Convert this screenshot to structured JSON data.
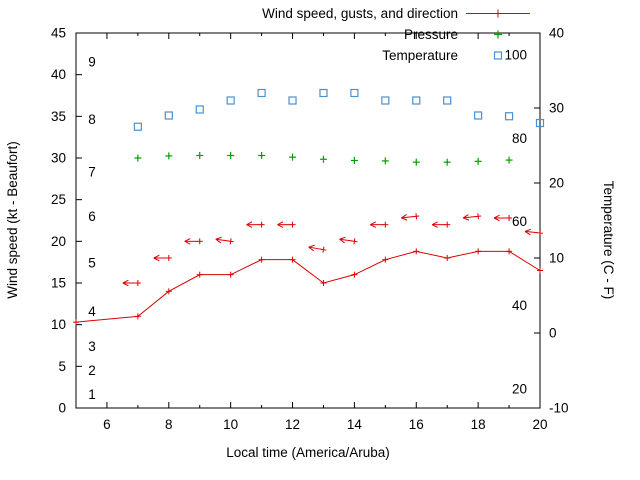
{
  "background": "#ffffff",
  "chart_data": {
    "type": "line",
    "title": "",
    "xlabel": "Local time (America/Aruba)",
    "ylabel_left": "Wind speed (kt - Beaufort)",
    "ylabel_right": "Temperature (C - F)",
    "x_range": [
      5,
      20
    ],
    "x_ticks": [
      6,
      8,
      10,
      12,
      14,
      16,
      18,
      20
    ],
    "x_minor_ticks": [
      5,
      7,
      9,
      11,
      13,
      15,
      17,
      19
    ],
    "y_left_range": [
      0,
      45
    ],
    "y_left_ticks": [
      0,
      5,
      10,
      15,
      20,
      25,
      30,
      35,
      40,
      45
    ],
    "y_right_range": [
      -10,
      40
    ],
    "y_right_ticks": [
      -10,
      0,
      10,
      20,
      30,
      40
    ],
    "grid": false,
    "legend_position": "top-right-inside",
    "beaufort_scale_labels": [
      {
        "label": "1",
        "kt": 1.6
      },
      {
        "label": "2",
        "kt": 4.5
      },
      {
        "label": "3",
        "kt": 7.4
      },
      {
        "label": "4",
        "kt": 11.6
      },
      {
        "label": "5",
        "kt": 17.4
      },
      {
        "label": "6",
        "kt": 23.0
      },
      {
        "label": "7",
        "kt": 28.3
      },
      {
        "label": "8",
        "kt": 34.6
      },
      {
        "label": "9",
        "kt": 41.5
      }
    ],
    "fahrenheit_scale_labels": [
      {
        "label": "20",
        "c": -6.7
      },
      {
        "label": "40",
        "c": 4.4
      },
      {
        "label": "60",
        "c": 15.6
      },
      {
        "label": "80",
        "c": 26.7
      },
      {
        "label": "100",
        "c": 37.8
      }
    ],
    "legend": [
      {
        "label": "Wind speed, gusts, and direction",
        "marker": "line-plus",
        "color": "#dd0000"
      },
      {
        "label": "Pressure",
        "marker": "plus",
        "color": "#00a000"
      },
      {
        "label": "Temperature",
        "marker": "square",
        "color": "#4a90d2"
      }
    ],
    "series": [
      {
        "name": "wind-speed",
        "style": "line-plus",
        "axis": "left",
        "unit": "kt",
        "color": "#dd0000",
        "x": [
          5,
          7,
          8,
          9,
          10,
          11,
          12,
          13,
          14,
          15,
          16,
          17,
          18,
          19,
          20
        ],
        "y": [
          10.3,
          11,
          14,
          16,
          16,
          17.8,
          17.8,
          15,
          16,
          17.8,
          18.8,
          18,
          18.8,
          18.8,
          16.5
        ]
      },
      {
        "name": "wind-gusts",
        "style": "arrow-left",
        "axis": "left",
        "unit": "kt",
        "color": "#dd0000",
        "x": [
          7,
          8,
          9,
          10,
          11,
          12,
          13,
          14,
          15,
          16,
          17,
          18,
          19,
          20
        ],
        "y": [
          15,
          18,
          20,
          20,
          22,
          22,
          19,
          20,
          22,
          23,
          22,
          23,
          22.8,
          21
        ],
        "tilt_deg": [
          0,
          0,
          0,
          8,
          0,
          0,
          10,
          8,
          0,
          -6,
          0,
          -6,
          0,
          6
        ]
      },
      {
        "name": "pressure",
        "style": "plus",
        "axis": "left",
        "unit": "inHg",
        "color": "#00a000",
        "x": [
          7,
          8,
          9,
          10,
          11,
          12,
          13,
          14,
          15,
          16,
          17,
          18,
          19
        ],
        "y": [
          30.0,
          30.25,
          30.3,
          30.3,
          30.3,
          30.1,
          29.85,
          29.7,
          29.65,
          29.5,
          29.5,
          29.6,
          29.75
        ]
      },
      {
        "name": "temperature",
        "style": "open-square",
        "axis": "right",
        "unit": "C",
        "color": "#4a90d2",
        "x": [
          7,
          8,
          9,
          10,
          11,
          12,
          13,
          14,
          15,
          16,
          17,
          18,
          19,
          20
        ],
        "y": [
          27.5,
          29,
          29.8,
          31,
          32,
          31,
          32,
          32,
          31,
          31,
          31,
          29,
          28.9,
          28
        ]
      }
    ]
  }
}
